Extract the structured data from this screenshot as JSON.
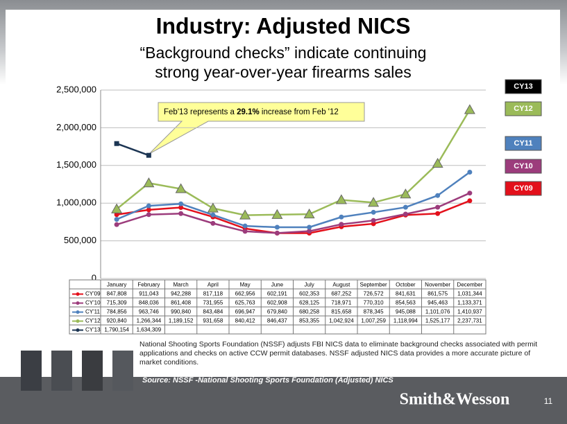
{
  "chart_data": {
    "type": "line",
    "title": "Industry: Adjusted NICS",
    "subtitle": [
      "“Background checks” indicate continuing",
      "strong year-over-year firearms sales"
    ],
    "categories": [
      "January",
      "February",
      "March",
      "April",
      "May",
      "June",
      "July",
      "August",
      "September",
      "October",
      "November",
      "December"
    ],
    "series": [
      {
        "name": "CY09",
        "table_label": "CY'09",
        "color": "#e3101b",
        "marker": "circle",
        "values": [
          847808,
          911043,
          942288,
          817118,
          662956,
          602191,
          602353,
          687252,
          726572,
          841631,
          861575,
          1031344
        ],
        "value_labels": [
          "847,808",
          "911,043",
          "942,288",
          "817,118",
          "662,956",
          "602,191",
          "602,353",
          "687,252",
          "726,572",
          "841,631",
          "861,575",
          "1,031,344"
        ]
      },
      {
        "name": "CY10",
        "table_label": "CY'10",
        "color": "#9c3c7c",
        "marker": "circle",
        "values": [
          715309,
          848036,
          861408,
          731955,
          625763,
          602908,
          628125,
          718971,
          770310,
          854563,
          945463,
          1133371
        ],
        "value_labels": [
          "715,309",
          "848,036",
          "861,408",
          "731,955",
          "625,763",
          "602,908",
          "628,125",
          "718,971",
          "770,310",
          "854,563",
          "945,463",
          "1,133,371"
        ]
      },
      {
        "name": "CY11",
        "table_label": "CY'11",
        "color": "#4f81bd",
        "marker": "circle",
        "values": [
          784856,
          963746,
          990840,
          843484,
          696947,
          679840,
          680258,
          815658,
          878345,
          945088,
          1101076,
          1410937
        ],
        "value_labels": [
          "784,856",
          "963,746",
          "990,840",
          "843,484",
          "696,947",
          "679,840",
          "680,258",
          "815,658",
          "878,345",
          "945,088",
          "1,101,076",
          "1,410,937"
        ]
      },
      {
        "name": "CY12",
        "table_label": "CY'12",
        "color": "#9bbb59",
        "marker": "triangle",
        "values": [
          920840,
          1266344,
          1189152,
          931658,
          840412,
          846437,
          853355,
          1042924,
          1007259,
          1118994,
          1525177,
          2237731
        ],
        "value_labels": [
          "920,840",
          "1,266,344",
          "1,189,152",
          "931,658",
          "840,412",
          "846,437",
          "853,355",
          "1,042,924",
          "1,007,259",
          "1,118,994",
          "1,525,177",
          "2,237,731"
        ]
      },
      {
        "name": "CY13",
        "table_label": "CY'13",
        "color": "#1c3553",
        "marker": "square",
        "values": [
          1790154,
          1634309,
          null,
          null,
          null,
          null,
          null,
          null,
          null,
          null,
          null,
          null
        ],
        "value_labels": [
          "1,790,154",
          "1,634,309",
          null,
          null,
          null,
          null,
          null,
          null,
          null,
          null,
          null,
          null
        ]
      }
    ],
    "ylim": [
      0,
      2500000
    ],
    "yticks": [
      0,
      {
        "value": 500000,
        "label": "500,000"
      },
      {
        "value": 1000000,
        "label": "1,000,000"
      },
      {
        "value": 1500000,
        "label": "1,500,000"
      },
      {
        "value": 2000000,
        "label": "2,000,000"
      },
      {
        "value": 2500000,
        "label": "2,500,000"
      }
    ],
    "annotation": [
      "Feb'13  represents a ",
      "29.1%",
      " increase from  Feb '12"
    ],
    "footnote": "National Shooting Sports Foundation (NSSF) adjusts FBI NICS data to eliminate background checks associated with permit applications and checks on active CCW permit databases. NSSF adjusted NICS data provides a more accurate picture of market conditions.",
    "source": "Source: NSSF -National Shooting Sports Foundation (Adjusted) NICS",
    "brand": "Smith&Wesson",
    "page_number": "11"
  }
}
